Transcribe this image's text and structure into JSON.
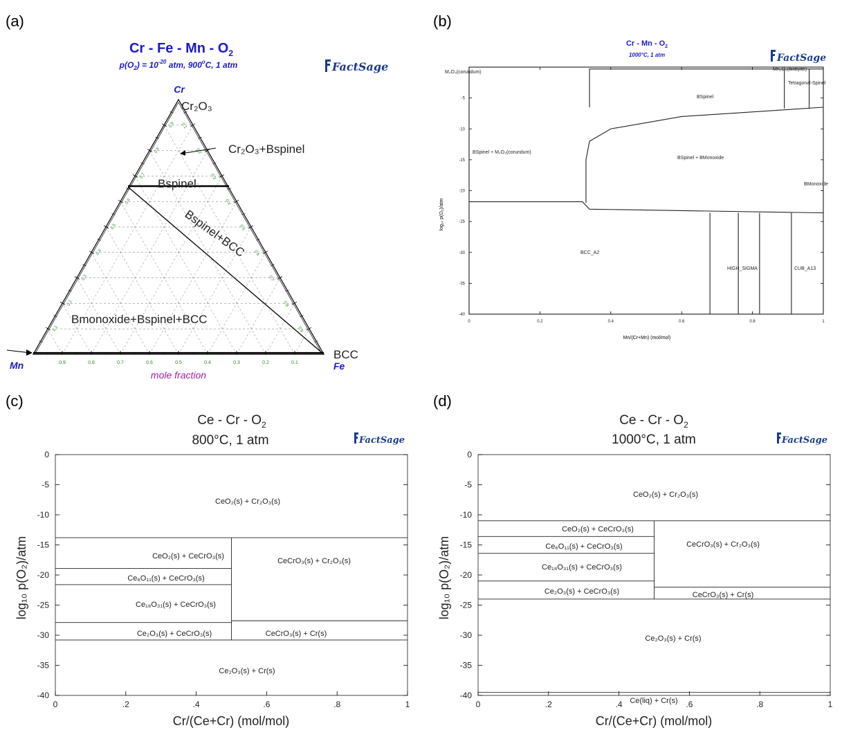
{
  "panels": {
    "a": {
      "label": "(a)",
      "title": "Cr - Fe - Mn - O",
      "title_sub": "2",
      "cond_p1": "p(O",
      "cond_sub": "2",
      "cond_p2": ") = 10",
      "cond_sup": "-20",
      "cond_p3": " atm,  900",
      "cond_deg": "o",
      "cond_p4": "C, 1 atm",
      "apex_top": "Cr",
      "apex_left": "Mn",
      "apex_right": "Fe",
      "xlabel": "mole fraction",
      "logo": "FactSage",
      "colors": {
        "title": "#1a1acd",
        "xlabel": "#9b1ea0",
        "ticks": "#2a8c2a"
      },
      "bottom_ticks": [
        "0.9",
        "0.8",
        "0.7",
        "0.6",
        "0.5",
        "0.4",
        "0.3",
        "0.2",
        "0.1"
      ],
      "left_ticks": [
        "0.9",
        "0.8",
        "0.7",
        "0.6",
        "0.5",
        "0.4",
        "0.3",
        "0.2",
        "0.1"
      ],
      "right_ticks": [
        "0.1",
        "0.2",
        "0.3",
        "0.4",
        "0.5",
        "0.6",
        "0.7",
        "0.8",
        "0.9"
      ],
      "labels": {
        "cr2o3": "Cr₂O₃",
        "cr2o3_bspinel": "Cr₂O₃+Bspinel",
        "bspinel": "Bspinel",
        "bspinel_bcc": "Bspinel+BCC",
        "bmono": "Bmonoxide+Bspinel+BCC",
        "bcc": "BCC"
      }
    },
    "b": {
      "label": "(b)",
      "title": "Cr - Mn - O",
      "title_sub": "2",
      "subtitle": "1000°C, 1 atm",
      "logo": "FactSage",
      "xlabel": "Mn/(Cr+Mn) (mol/mol)",
      "ylabel": "log₁₀ p(O₂)/atm",
      "colors": {
        "title": "#1a1acd"
      },
      "xticks": [
        "0",
        "0.2",
        "0.4",
        "0.6",
        "0.8",
        "1"
      ],
      "yticks": [
        "-5",
        "-10",
        "-15",
        "-20",
        "-25",
        "-30",
        "-35",
        "-40"
      ],
      "labels": {
        "m2o3": "M₂O₃(corundum)",
        "mn2o3": "Mn₂O₃(bixbyite)",
        "tetragonal": "Tetragonal-Spinel",
        "bspinel": "BSpinel",
        "bspinel_m2o3": "BSpinel + M₂O₃(corundum)",
        "bspinel_bmono": "BSpinel + BMonoxide",
        "bmono": "BMonoxide",
        "bcc": "BCC_A2",
        "sigma": "HIGH_SIGMA",
        "cub": "CUB_A13"
      }
    },
    "c": {
      "label": "(c)",
      "title": "Ce - Cr - O",
      "title_sub": "2",
      "subtitle": "800°C, 1 atm",
      "logo": "FactSage",
      "xlabel": "Cr/(Ce+Cr) (mol/mol)",
      "ylabel": "log₁₀ p(O₂)/atm",
      "xticks": [
        "0",
        ".2",
        ".4",
        ".6",
        ".8",
        "1"
      ],
      "yticks": [
        "0",
        "-5",
        "-10",
        "-15",
        "-20",
        "-25",
        "-30",
        "-35",
        "-40"
      ],
      "labels": {
        "r1": "CeO₂(s) + Cr₂O₃(s)",
        "r2": "CeO₂(s) + CeCrO₃(s)",
        "r3": "CeCrO₃(s) + Cr₂O₃(s)",
        "r4": "Ce₆O₁₁(s) + CeCrO₃(s)",
        "r5": "Ce₁₈O₃₁(s) + CeCrO₃(s)",
        "r6": "Ce₂O₃(s) + CeCrO₃(s)",
        "r7": "CeCrO₃(s) + Cr(s)",
        "r8": "Ce₂O₃(s) + Cr(s)"
      }
    },
    "d": {
      "label": "(d)",
      "title": "Ce - Cr - O",
      "title_sub": "2",
      "subtitle": "1000°C, 1 atm",
      "logo": "FactSage",
      "xlabel": "Cr/(Ce+Cr) (mol/mol)",
      "ylabel": "log₁₀ p(O₂)/atm",
      "xticks": [
        "0",
        ".2",
        ".4",
        ".6",
        ".8",
        "1"
      ],
      "yticks": [
        "0",
        "-5",
        "-10",
        "-15",
        "-20",
        "-25",
        "-30",
        "-35",
        "-40"
      ],
      "labels": {
        "r1": "CeO₂(s) + Cr₂O₃(s)",
        "r2": "CeO₂(s) + CeCrO₃(s)",
        "r3": "CeCrO₃(s) + Cr₂O₃(s)",
        "r4": "Ce₆O₁₁(s) + CeCrO₃(s)",
        "r5": "Ce₁₈O₃₁(s) + CeCrO₃(s)",
        "r6": "Ce₂O₃(s) + CeCrO₃(s)",
        "r7": "CeCrO₃(s) + Cr(s)",
        "r8": "Ce₂O₃(s) + Cr(s)",
        "r9": "Ce(liq) + Cr(s)"
      }
    }
  },
  "chart_data": [
    {
      "type": "phase-diagram-ternary",
      "title": "Cr - Fe - Mn - O2",
      "apices": [
        "Cr",
        "Mn",
        "Fe"
      ],
      "boundaries": [
        {
          "from": {
            "Cr": 0.7,
            "Mn": 0.3,
            "Fe": 0
          },
          "to": {
            "Cr": 0.7,
            "Mn": 0,
            "Fe": 0.3
          }
        },
        {
          "from": {
            "Cr": 0.7,
            "Mn": 0.3,
            "Fe": 0
          },
          "to": {
            "Cr": 0,
            "Mn": 0,
            "Fe": 1
          }
        }
      ]
    },
    {
      "type": "phase-diagram",
      "title": "Cr - Mn - O2",
      "xlim": [
        0,
        1
      ],
      "ylim": [
        -40,
        0
      ],
      "boundaries": [
        {
          "x": [
            0,
            0.32,
            0.34,
            1
          ],
          "y": [
            -21.8,
            -21.8,
            -23,
            -23.6
          ]
        },
        {
          "x": [
            0.33,
            0.33,
            0.34,
            0.4,
            0.6,
            1
          ],
          "y": [
            -22,
            -15,
            -12,
            -10,
            -8,
            -6.5
          ]
        },
        {
          "x": [
            0.34,
            0.34,
            1
          ],
          "y": [
            -6.5,
            -0.3,
            -0.3
          ]
        },
        {
          "x": [
            0.68,
            0.68
          ],
          "y": [
            -23.6,
            -40
          ]
        },
        {
          "x": [
            0.76,
            0.76
          ],
          "y": [
            -23.6,
            -40
          ]
        },
        {
          "x": [
            0.82,
            0.82
          ],
          "y": [
            -23.6,
            -40
          ]
        },
        {
          "x": [
            0.91,
            0.91
          ],
          "y": [
            -23.6,
            -40
          ]
        },
        {
          "x": [
            0.89,
            0.89
          ],
          "y": [
            -0.3,
            -6.7
          ]
        },
        {
          "x": [
            0.96,
            0.96
          ],
          "y": [
            -0.3,
            -6.7
          ]
        }
      ]
    },
    {
      "type": "phase-diagram",
      "title": "Ce - Cr - O2",
      "xlim": [
        0,
        1
      ],
      "ylim": [
        -40,
        0
      ],
      "boundaries": [
        {
          "x": [
            0,
            1
          ],
          "y": [
            -13.8,
            -13.8
          ]
        },
        {
          "x": [
            0.5,
            0.5
          ],
          "y": [
            -13.8,
            -30.8
          ]
        },
        {
          "x": [
            0,
            0.5
          ],
          "y": [
            -18.9,
            -18.9
          ]
        },
        {
          "x": [
            0,
            0.5
          ],
          "y": [
            -21.6,
            -21.6
          ]
        },
        {
          "x": [
            0,
            0.5
          ],
          "y": [
            -27.9,
            -27.9
          ]
        },
        {
          "x": [
            0.5,
            1
          ],
          "y": [
            -27.6,
            -27.6
          ]
        },
        {
          "x": [
            0,
            1
          ],
          "y": [
            -30.8,
            -30.8
          ]
        }
      ]
    },
    {
      "type": "phase-diagram",
      "title": "Ce - Cr - O2",
      "xlim": [
        0,
        1
      ],
      "ylim": [
        -40,
        0
      ],
      "boundaries": [
        {
          "x": [
            0,
            1
          ],
          "y": [
            -11,
            -11
          ]
        },
        {
          "x": [
            0.5,
            0.5
          ],
          "y": [
            -11,
            -24
          ]
        },
        {
          "x": [
            0,
            0.5
          ],
          "y": [
            -13.6,
            -13.6
          ]
        },
        {
          "x": [
            0,
            0.5
          ],
          "y": [
            -16.4,
            -16.4
          ]
        },
        {
          "x": [
            0,
            0.5
          ],
          "y": [
            -21,
            -21
          ]
        },
        {
          "x": [
            0.5,
            1
          ],
          "y": [
            -22,
            -22
          ]
        },
        {
          "x": [
            0,
            1
          ],
          "y": [
            -24,
            -24
          ]
        },
        {
          "x": [
            0,
            1
          ],
          "y": [
            -39.5,
            -39.5
          ]
        }
      ]
    }
  ]
}
